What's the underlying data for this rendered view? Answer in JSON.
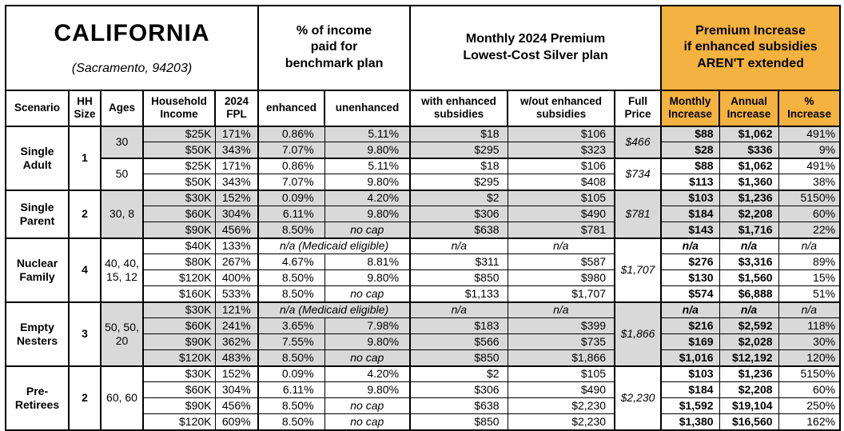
{
  "colors": {
    "orange": "#F4B240",
    "shaded_gray": "#D9D9D9",
    "border": "#000000"
  },
  "header": {
    "title": "CALIFORNIA",
    "subtitle": "(Sacramento, 94203)",
    "groups": {
      "income_pct": "% of income\npaid for\nbenchmark plan",
      "monthly_premium": "Monthly 2024 Premium\nLowest-Cost Silver plan",
      "premium_increase": "Premium Increase\nif enhanced subsidies\nAREN'T extended"
    }
  },
  "columns": [
    "Scenario",
    "HH\nSize",
    "Ages",
    "Household\nIncome",
    "2024\nFPL",
    "enhanced",
    "unenhanced",
    "with enhanced\nsubsidies",
    "w/out enhanced\nsubsidies",
    "Full\nPrice",
    "Monthly\nIncrease",
    "Annual\nIncrease",
    "%\nIncrease"
  ],
  "special_values": {
    "no_cap": "no cap",
    "medicaid": "n/a (Medicaid eligible)",
    "na": "n/a"
  },
  "scenarios": [
    {
      "name": "Single\nAdult",
      "hh_size": "1",
      "age_groups": [
        {
          "ages": "30",
          "shaded": true,
          "full_price": "$466",
          "rows": [
            {
              "income": "$25K",
              "fpl": "171%",
              "enhanced": "0.86%",
              "unenhanced": "5.11%",
              "with_sub": "$18",
              "wout_sub": "$106",
              "monthly": "$88",
              "annual": "$1,062",
              "pct": "491%"
            },
            {
              "income": "$50K",
              "fpl": "343%",
              "enhanced": "7.07%",
              "unenhanced": "9.80%",
              "with_sub": "$295",
              "wout_sub": "$323",
              "monthly": "$28",
              "annual": "$336",
              "pct": "9%"
            }
          ]
        },
        {
          "ages": "50",
          "shaded": false,
          "full_price": "$734",
          "rows": [
            {
              "income": "$25K",
              "fpl": "171%",
              "enhanced": "0.86%",
              "unenhanced": "5.11%",
              "with_sub": "$18",
              "wout_sub": "$106",
              "monthly": "$88",
              "annual": "$1,062",
              "pct": "491%"
            },
            {
              "income": "$50K",
              "fpl": "343%",
              "enhanced": "7.07%",
              "unenhanced": "9.80%",
              "with_sub": "$295",
              "wout_sub": "$408",
              "monthly": "$113",
              "annual": "$1,360",
              "pct": "38%"
            }
          ]
        }
      ]
    },
    {
      "name": "Single\nParent",
      "hh_size": "2",
      "age_groups": [
        {
          "ages": "30, 8",
          "shaded": true,
          "full_price": "$781",
          "rows": [
            {
              "income": "$30K",
              "fpl": "152%",
              "enhanced": "0.09%",
              "unenhanced": "4.20%",
              "with_sub": "$2",
              "wout_sub": "$105",
              "monthly": "$103",
              "annual": "$1,236",
              "pct": "5150%"
            },
            {
              "income": "$60K",
              "fpl": "304%",
              "enhanced": "6.11%",
              "unenhanced": "9.80%",
              "with_sub": "$306",
              "wout_sub": "$490",
              "monthly": "$184",
              "annual": "$2,208",
              "pct": "60%"
            },
            {
              "income": "$90K",
              "fpl": "456%",
              "enhanced": "8.50%",
              "unenhanced": "no cap",
              "with_sub": "$638",
              "wout_sub": "$781",
              "monthly": "$143",
              "annual": "$1,716",
              "pct": "22%"
            }
          ]
        }
      ]
    },
    {
      "name": "Nuclear\nFamily",
      "hh_size": "4",
      "age_groups": [
        {
          "ages": "40, 40,\n15, 12",
          "shaded": false,
          "full_price": "$1,707",
          "rows": [
            {
              "income": "$40K",
              "fpl": "133%",
              "medicaid": true,
              "with_sub": "n/a",
              "wout_sub": "n/a",
              "monthly": "n/a",
              "annual": "n/a",
              "pct": "n/a"
            },
            {
              "income": "$80K",
              "fpl": "267%",
              "enhanced": "4.67%",
              "unenhanced": "8.81%",
              "with_sub": "$311",
              "wout_sub": "$587",
              "monthly": "$276",
              "annual": "$3,316",
              "pct": "89%"
            },
            {
              "income": "$120K",
              "fpl": "400%",
              "enhanced": "8.50%",
              "unenhanced": "9.80%",
              "with_sub": "$850",
              "wout_sub": "$980",
              "monthly": "$130",
              "annual": "$1,560",
              "pct": "15%"
            },
            {
              "income": "$160K",
              "fpl": "533%",
              "enhanced": "8.50%",
              "unenhanced": "no cap",
              "with_sub": "$1,133",
              "wout_sub": "$1,707",
              "monthly": "$574",
              "annual": "$6,888",
              "pct": "51%"
            }
          ]
        }
      ]
    },
    {
      "name": "Empty\nNesters",
      "hh_size": "3",
      "age_groups": [
        {
          "ages": "50, 50,\n20",
          "shaded": true,
          "full_price": "$1,866",
          "rows": [
            {
              "income": "$30K",
              "fpl": "121%",
              "medicaid": true,
              "with_sub": "n/a",
              "wout_sub": "n/a",
              "monthly": "n/a",
              "annual": "n/a",
              "pct": "n/a"
            },
            {
              "income": "$60K",
              "fpl": "241%",
              "enhanced": "3.65%",
              "unenhanced": "7.98%",
              "with_sub": "$183",
              "wout_sub": "$399",
              "monthly": "$216",
              "annual": "$2,592",
              "pct": "118%"
            },
            {
              "income": "$90K",
              "fpl": "362%",
              "enhanced": "7.55%",
              "unenhanced": "9.80%",
              "with_sub": "$566",
              "wout_sub": "$735",
              "monthly": "$169",
              "annual": "$2,028",
              "pct": "30%"
            },
            {
              "income": "$120K",
              "fpl": "483%",
              "enhanced": "8.50%",
              "unenhanced": "no cap",
              "with_sub": "$850",
              "wout_sub": "$1,866",
              "monthly": "$1,016",
              "annual": "$12,192",
              "pct": "120%"
            }
          ]
        }
      ]
    },
    {
      "name": "Pre-\nRetirees",
      "hh_size": "2",
      "age_groups": [
        {
          "ages": "60, 60",
          "shaded": false,
          "full_price": "$2,230",
          "rows": [
            {
              "income": "$30K",
              "fpl": "152%",
              "enhanced": "0.09%",
              "unenhanced": "4.20%",
              "with_sub": "$2",
              "wout_sub": "$105",
              "monthly": "$103",
              "annual": "$1,236",
              "pct": "5150%"
            },
            {
              "income": "$60K",
              "fpl": "304%",
              "enhanced": "6.11%",
              "unenhanced": "9.80%",
              "with_sub": "$306",
              "wout_sub": "$490",
              "monthly": "$184",
              "annual": "$2,208",
              "pct": "60%"
            },
            {
              "income": "$90K",
              "fpl": "456%",
              "enhanced": "8.50%",
              "unenhanced": "no cap",
              "with_sub": "$638",
              "wout_sub": "$2,230",
              "monthly": "$1,592",
              "annual": "$19,104",
              "pct": "250%"
            },
            {
              "income": "$120K",
              "fpl": "609%",
              "enhanced": "8.50%",
              "unenhanced": "no cap",
              "with_sub": "$850",
              "wout_sub": "$2,230",
              "monthly": "$1,380",
              "annual": "$16,560",
              "pct": "162%"
            }
          ]
        }
      ]
    }
  ]
}
